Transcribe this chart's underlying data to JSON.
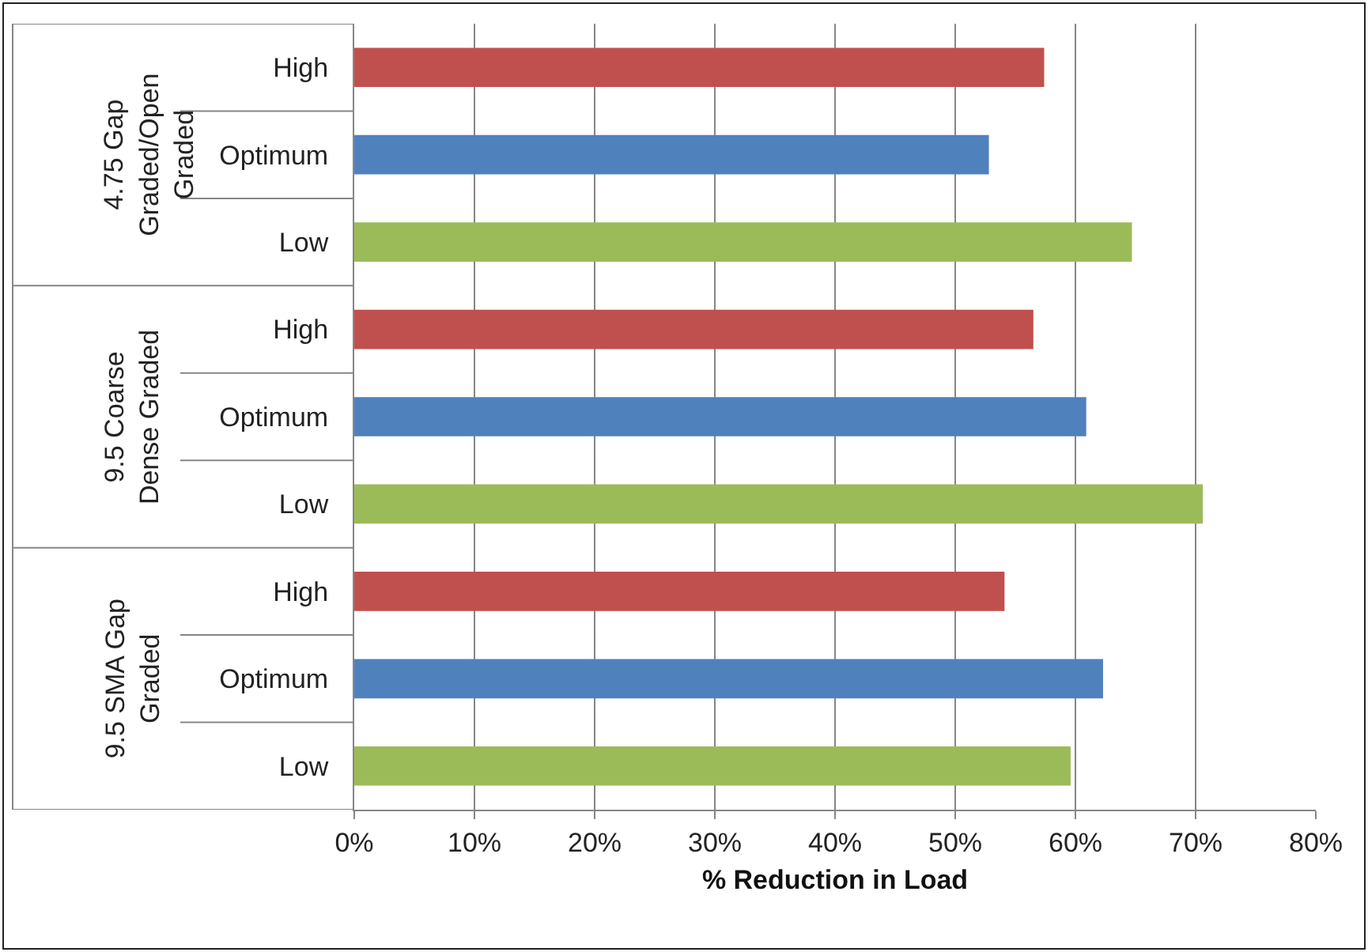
{
  "chart_data": {
    "type": "bar",
    "orientation": "horizontal",
    "xlabel": "% Reduction in Load",
    "categories": [
      "High",
      "Optimum",
      "Low",
      "High",
      "Optimum",
      "Low",
      "High",
      "Optimum",
      "Low"
    ],
    "values": [
      57.4,
      52.8,
      64.7,
      56.5,
      60.9,
      70.6,
      54.1,
      62.3,
      59.6
    ],
    "colors": [
      "#c0504d",
      "#4f81bd",
      "#9bbb59",
      "#c0504d",
      "#4f81bd",
      "#9bbb59",
      "#c0504d",
      "#4f81bd",
      "#9bbb59"
    ],
    "annotations": [
      "4.75 Gap Graded/Open Graded",
      "9.5 Coarse Dense Graded",
      "9.5 SMA Gap Graded"
    ],
    "xlim": [
      0,
      80
    ],
    "xticks": [
      {
        "value": 0,
        "label": "0%"
      },
      {
        "value": 10,
        "label": "10%"
      },
      {
        "value": 20,
        "label": "20%"
      },
      {
        "value": 30,
        "label": "30%"
      },
      {
        "value": 40,
        "label": "40%"
      },
      {
        "value": 50,
        "label": "50%"
      },
      {
        "value": 60,
        "label": "60%"
      },
      {
        "value": 70,
        "label": "70%"
      },
      {
        "value": 80,
        "label": "80%"
      }
    ],
    "grid": "x"
  }
}
